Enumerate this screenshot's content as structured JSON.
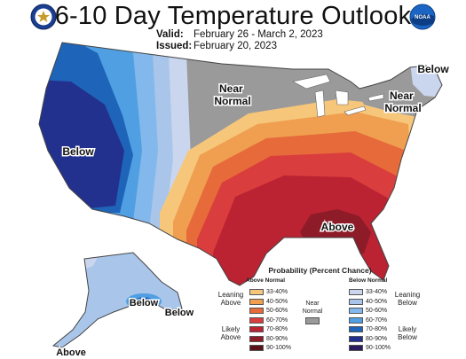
{
  "header": {
    "title": "6-10 Day Temperature Outlook",
    "valid_label": "Valid:",
    "valid_value": "February 26 - March 2, 2023",
    "issued_label": "Issued:",
    "issued_value": "February 20, 2023"
  },
  "logos": {
    "left": "doc-seal-icon",
    "right": "noaa-logo-icon",
    "noaa_text": "NOAA"
  },
  "map_labels": {
    "near_normal_central": "Near\nNormal",
    "near_normal_northeast": "Near\nNormal",
    "below_west": "Below",
    "below_maine": "Below",
    "above_southeast": "Above",
    "below_alaska": "Below",
    "below_alaska_panhandle": "Below",
    "above_alaska_aleutians": "Above"
  },
  "legend": {
    "title": "Probability (Percent Chance)",
    "above_header": "Above Normal",
    "below_header": "Below Normal",
    "leaning_above": "Leaning Above",
    "likely_above": "Likely Above",
    "leaning_below": "Leaning Below",
    "likely_below": "Likely Below",
    "near_normal": "Near Normal",
    "above_rows": [
      {
        "label": "33-40%",
        "color": "#f6c77b"
      },
      {
        "label": "40-50%",
        "color": "#ef9f4f"
      },
      {
        "label": "50-60%",
        "color": "#e76a3a"
      },
      {
        "label": "60-70%",
        "color": "#d93d3d"
      },
      {
        "label": "70-80%",
        "color": "#bb2232"
      },
      {
        "label": "80-90%",
        "color": "#8d1b28"
      },
      {
        "label": "90-100%",
        "color": "#5a1018"
      }
    ],
    "below_rows": [
      {
        "label": "33-40%",
        "color": "#c9d6ee"
      },
      {
        "label": "40-50%",
        "color": "#a9c6ea"
      },
      {
        "label": "50-60%",
        "color": "#83b8ec"
      },
      {
        "label": "60-70%",
        "color": "#4f9fe2"
      },
      {
        "label": "70-80%",
        "color": "#1e64b8"
      },
      {
        "label": "80-90%",
        "color": "#22318e"
      },
      {
        "label": "90-100%",
        "color": "#2a1a5e"
      }
    ],
    "near_normal_color": "#9a9a9a"
  }
}
